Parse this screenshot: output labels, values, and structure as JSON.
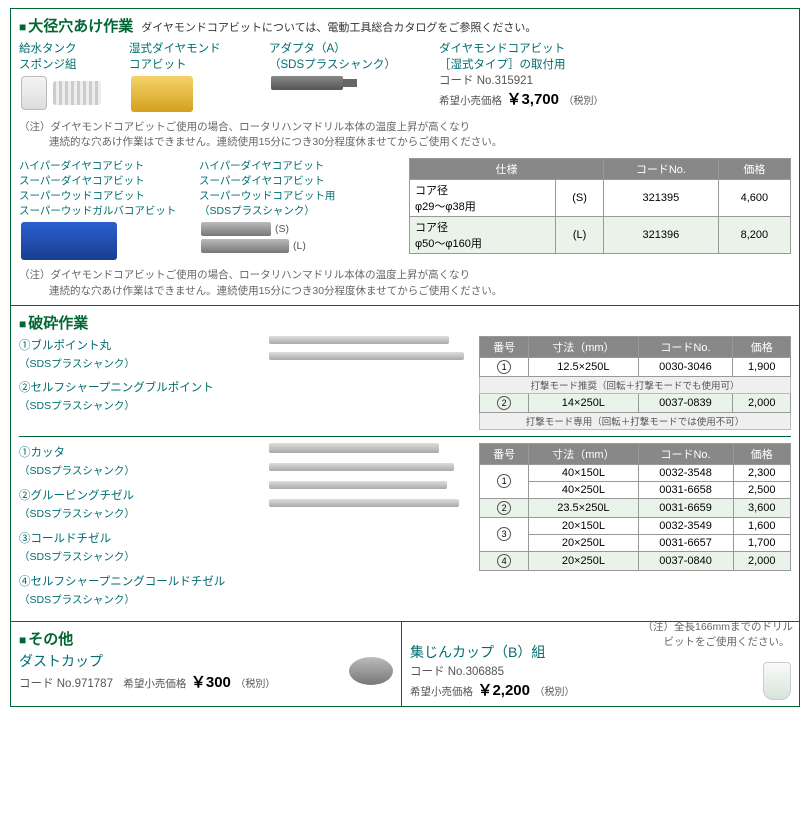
{
  "section1": {
    "title": "大径穴あけ作業",
    "titleNote": "ダイヤモンドコアビットについては、電動工具総合カタログをご参照ください。",
    "labelsTop": {
      "a": "給水タンク\nスポンジ組",
      "b": "湿式ダイヤモンド\nコアビット",
      "c": "アダプタ（A）\n（SDSプラスシャンク）"
    },
    "right": {
      "title": "ダイヤモンドコアビット\n［湿式タイプ］の取付用",
      "code": "コード No.315921",
      "priceLabel": "希望小売価格",
      "price": "￥3,700",
      "tax": "（税別）"
    },
    "note1a": "（注）ダイヤモンドコアビットご使用の場合、ロータリハンマドリル本体の温度上昇が高くなり",
    "note1b": "連続的な穴あけ作業はできません。連続使用15分につき30分程度休ませてからご使用ください。",
    "leftList": [
      "ハイパーダイヤコアビット",
      "スーパーダイヤコアビット",
      "スーパーウッドコアビット",
      "スーパーウッドガルバコアビット"
    ],
    "rightList": [
      "ハイパーダイヤコアビット",
      "スーパーダイヤコアビット",
      "スーパーウッドコアビット用",
      "（SDSプラスシャンク）"
    ],
    "specTable": {
      "headers": [
        "仕様",
        "コードNo.",
        "価格"
      ],
      "rows": [
        {
          "spec": "コア径\nφ29～φ38用",
          "mark": "(S)",
          "code": "321395",
          "price": "4,600",
          "alt": false
        },
        {
          "spec": "コア径\nφ50～φ160用",
          "mark": "(L)",
          "code": "321396",
          "price": "8,200",
          "alt": true
        }
      ]
    },
    "sMark": "(S)",
    "lMark": "(L)"
  },
  "section2": {
    "title": "破砕作業",
    "items1": [
      {
        "num": "①",
        "name": "ブルポイント丸",
        "sub": "（SDSプラスシャンク）"
      },
      {
        "num": "②",
        "name": "セルフシャープニングブルポイント",
        "sub": "（SDSプラスシャンク）"
      }
    ],
    "table1": {
      "headers": [
        "番号",
        "寸法（mm）",
        "コードNo.",
        "価格"
      ],
      "rows": [
        {
          "num": "①",
          "dim": "12.5×250L",
          "code": "0030-3046",
          "price": "1,900",
          "alt": false
        },
        {
          "num": "②",
          "dim": "14×250L",
          "code": "0037-0839",
          "price": "2,000",
          "alt": true
        }
      ],
      "mode1": "打撃モード推奨（回転＋打撃モードでも使用可）",
      "mode2": "打撃モード専用（回転＋打撃モードでは使用不可）"
    },
    "items2": [
      {
        "num": "①",
        "name": "カッタ",
        "sub": "（SDSプラスシャンク）"
      },
      {
        "num": "②",
        "name": "グルービングチゼル",
        "sub": "（SDSプラスシャンク）"
      },
      {
        "num": "③",
        "name": "コールドチゼル",
        "sub": "（SDSプラスシャンク）"
      },
      {
        "num": "④",
        "name": "セルフシャープニングコールドチゼル",
        "sub": "（SDSプラスシャンク）"
      }
    ],
    "table2": {
      "headers": [
        "番号",
        "寸法（mm）",
        "コードNo.",
        "価格"
      ],
      "rows": [
        {
          "num": "①",
          "dim": "40×150L",
          "code": "0032-3548",
          "price": "2,300",
          "span": 2,
          "alt": false
        },
        {
          "num": "",
          "dim": "40×250L",
          "code": "0031-6658",
          "price": "2,500",
          "alt": false
        },
        {
          "num": "②",
          "dim": "23.5×250L",
          "code": "0031-6659",
          "price": "3,600",
          "alt": true
        },
        {
          "num": "③",
          "dim": "20×150L",
          "code": "0032-3549",
          "price": "1,600",
          "span": 2,
          "alt": false
        },
        {
          "num": "",
          "dim": "20×250L",
          "code": "0031-6657",
          "price": "1,700",
          "alt": false
        },
        {
          "num": "④",
          "dim": "20×250L",
          "code": "0037-0840",
          "price": "2,000",
          "alt": true
        }
      ]
    }
  },
  "section3": {
    "title": "その他",
    "left": {
      "name": "ダストカップ",
      "code": "コード No.971787",
      "priceLabel": "希望小売価格",
      "price": "￥300",
      "tax": "（税別）"
    },
    "right": {
      "name": "集じんカップ（B）組",
      "code": "コード No.306885",
      "priceLabel": "希望小売価格",
      "price": "￥2,200",
      "tax": "（税別）"
    },
    "note": "（注）全長166mmまでのドリル\n　　ビットをご使用ください。"
  }
}
